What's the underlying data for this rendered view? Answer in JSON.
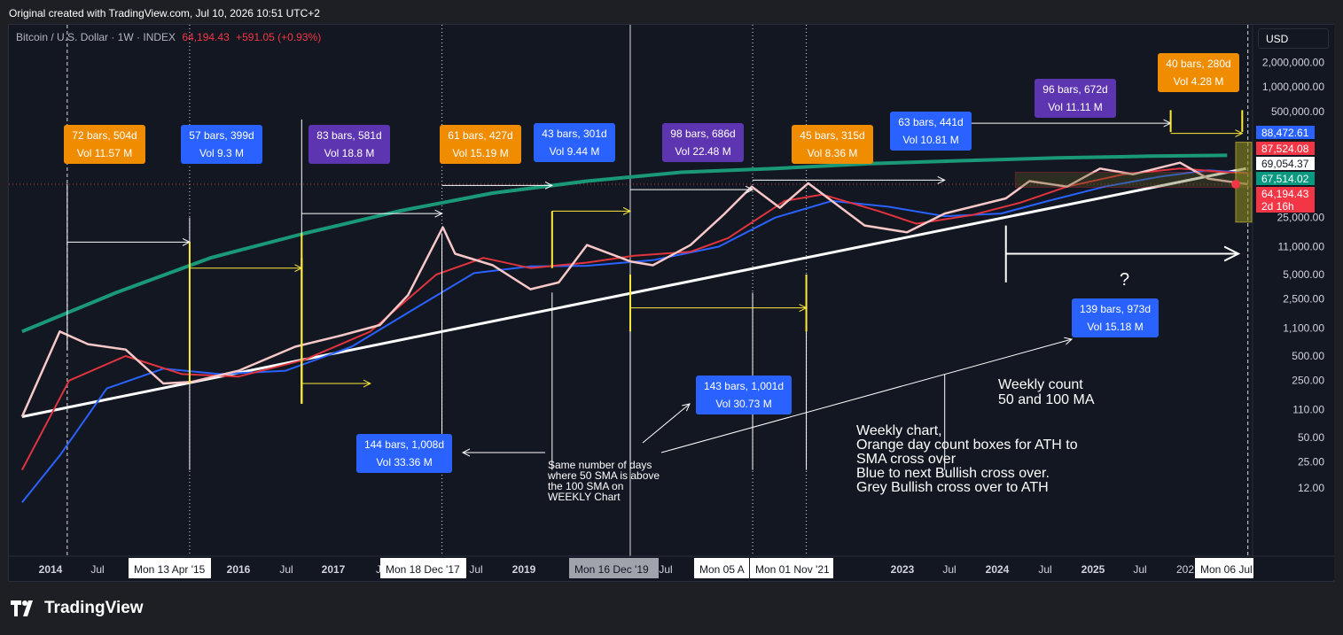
{
  "header": {
    "caption": "Original created with TradingView.com, Jul 10, 2026 10:51 UTC+2"
  },
  "legend": {
    "symbol": "Bitcoin / U.S. Dollar · 1W · INDEX",
    "price": "64,194.43",
    "change": "+591.05 (+0.93%)"
  },
  "currency_button": "USD",
  "brand": "TradingView",
  "colors": {
    "background": "#131722",
    "price": "#f8c8c8",
    "sma50": "#e0343e",
    "sma100": "#2962ff",
    "arc": "#1a9978",
    "support": "#ffffff",
    "orange": "#f08c00",
    "blue": "#2962ff",
    "purple": "#5e35b1",
    "yellow": "#ffeb3b"
  },
  "chart_data": {
    "type": "line",
    "title": "Bitcoin / U.S. Dollar · 1W · INDEX",
    "scale": "log",
    "timeframe": "1W",
    "ylim": [
      8,
      3000000
    ],
    "y_ticks": [
      "2,000,000.00",
      "1,000,000.00",
      "500,000.00",
      "25,000.00",
      "11,000.00",
      "5,000.00",
      "2,500.00",
      "1,100.00",
      "500.00",
      "250.00",
      "110.00",
      "50.00",
      "25.00",
      "12.00"
    ],
    "x_ticks": [
      "2014",
      "Jul",
      "2016",
      "Jul",
      "2017",
      "J",
      "Jul",
      "2019",
      "Jul",
      "2023",
      "Jul",
      "2024",
      "Jul",
      "2025",
      "Jul",
      "202"
    ],
    "x_highlight_labels": [
      "Mon 13 Apr '15",
      "Mon 18 Dec '17",
      "Mon 16 Dec '19",
      "Mon 05 A",
      "Mon 01 Nov '21",
      "Mon 06 Jul"
    ],
    "price_labels": [
      {
        "text": "88,472.61",
        "color": "#2962ff"
      },
      {
        "text": "87,524.08",
        "color": "#f23645"
      },
      {
        "text": "69,054.37",
        "color": "#ffffff"
      },
      {
        "text": "67,514.02",
        "color": "#089981"
      },
      {
        "text": "64,194.43",
        "color": "#f23645"
      },
      {
        "text": "2d 16h",
        "color": "#f23645"
      }
    ],
    "series": [
      {
        "name": "Bitcoin / U.S. Dollar",
        "points": [
          [
            2013.5,
            90
          ],
          [
            2013.9,
            1000
          ],
          [
            2014.2,
            700
          ],
          [
            2014.6,
            600
          ],
          [
            2015.0,
            230
          ],
          [
            2015.3,
            240
          ],
          [
            2015.8,
            330
          ],
          [
            2016.4,
            650
          ],
          [
            2016.9,
            900
          ],
          [
            2017.3,
            1200
          ],
          [
            2017.6,
            2800
          ],
          [
            2017.97,
            19000
          ],
          [
            2018.1,
            9000
          ],
          [
            2018.5,
            6500
          ],
          [
            2018.9,
            3300
          ],
          [
            2019.2,
            4000
          ],
          [
            2019.5,
            11500
          ],
          [
            2019.97,
            7200
          ],
          [
            2020.2,
            6500
          ],
          [
            2020.6,
            11500
          ],
          [
            2020.95,
            27000
          ],
          [
            2021.25,
            60000
          ],
          [
            2021.55,
            33000
          ],
          [
            2021.85,
            66000
          ],
          [
            2022.45,
            20000
          ],
          [
            2022.9,
            16500
          ],
          [
            2023.3,
            28000
          ],
          [
            2023.95,
            43000
          ],
          [
            2024.2,
            70000
          ],
          [
            2024.6,
            60000
          ],
          [
            2024.95,
            100000
          ],
          [
            2025.3,
            85000
          ],
          [
            2025.8,
            118000
          ],
          [
            2026.1,
            75000
          ],
          [
            2026.52,
            64194
          ]
        ]
      },
      {
        "name": "SMA 50",
        "points": [
          [
            2013.5,
            20
          ],
          [
            2014.0,
            250
          ],
          [
            2014.6,
            500
          ],
          [
            2015.2,
            300
          ],
          [
            2015.8,
            280
          ],
          [
            2016.5,
            450
          ],
          [
            2017.2,
            1000
          ],
          [
            2017.9,
            5000
          ],
          [
            2018.4,
            8000
          ],
          [
            2018.9,
            6000
          ],
          [
            2019.5,
            7000
          ],
          [
            2020.0,
            8500
          ],
          [
            2020.6,
            9500
          ],
          [
            2021.0,
            14000
          ],
          [
            2021.6,
            40000
          ],
          [
            2022.0,
            48000
          ],
          [
            2022.6,
            30000
          ],
          [
            2023.0,
            21000
          ],
          [
            2023.6,
            27000
          ],
          [
            2024.1,
            38000
          ],
          [
            2024.6,
            60000
          ],
          [
            2025.2,
            85000
          ],
          [
            2025.8,
            100000
          ],
          [
            2026.3,
            90000
          ],
          [
            2026.52,
            87524
          ]
        ]
      },
      {
        "name": "SMA 100",
        "points": [
          [
            2013.5,
            8
          ],
          [
            2013.9,
            30
          ],
          [
            2014.4,
            200
          ],
          [
            2015.0,
            350
          ],
          [
            2015.6,
            300
          ],
          [
            2016.3,
            330
          ],
          [
            2017.0,
            650
          ],
          [
            2017.7,
            2000
          ],
          [
            2018.3,
            5200
          ],
          [
            2018.9,
            6300
          ],
          [
            2019.5,
            6400
          ],
          [
            2020.2,
            7500
          ],
          [
            2020.9,
            11000
          ],
          [
            2021.5,
            25000
          ],
          [
            2022.1,
            40000
          ],
          [
            2022.7,
            34000
          ],
          [
            2023.3,
            26000
          ],
          [
            2023.9,
            28000
          ],
          [
            2024.4,
            40000
          ],
          [
            2025.0,
            60000
          ],
          [
            2025.6,
            80000
          ],
          [
            2026.1,
            95000
          ],
          [
            2026.52,
            88472
          ]
        ]
      }
    ],
    "arc_line": [
      [
        2013.5,
        1000
      ],
      [
        2014.5,
        3000
      ],
      [
        2015.5,
        8000
      ],
      [
        2016.5,
        16000
      ],
      [
        2017.5,
        30000
      ],
      [
        2018.5,
        50000
      ],
      [
        2019.5,
        70000
      ],
      [
        2020.5,
        90000
      ],
      [
        2021.5,
        100000
      ],
      [
        2022.5,
        115000
      ],
      [
        2023.5,
        125000
      ],
      [
        2024.5,
        135000
      ],
      [
        2025.5,
        142000
      ],
      [
        2026.3,
        145000
      ]
    ],
    "support_line": [
      [
        2013.5,
        90
      ],
      [
        2026.5,
        100000
      ]
    ],
    "cycle_boxes": [
      {
        "label": "72 bars, 504d",
        "vol": "Vol 11.57 M",
        "color": "orange"
      },
      {
        "label": "57 bars, 399d",
        "vol": "Vol 9.3 M",
        "color": "blue"
      },
      {
        "label": "83 bars, 581d",
        "vol": "Vol 18.8 M",
        "color": "purple"
      },
      {
        "label": "61 bars, 427d",
        "vol": "Vol 15.19 M",
        "color": "orange"
      },
      {
        "label": "43 bars, 301d",
        "vol": "Vol 9.44 M",
        "color": "blue"
      },
      {
        "label": "98 bars, 686d",
        "vol": "Vol 22.48 M",
        "color": "purple"
      },
      {
        "label": "45 bars, 315d",
        "vol": "Vol 8.36 M",
        "color": "orange"
      },
      {
        "label": "63 bars, 441d",
        "vol": "Vol 10.81 M",
        "color": "blue"
      },
      {
        "label": "96 bars, 672d",
        "vol": "Vol 11.11 M",
        "color": "purple"
      },
      {
        "label": "40 bars, 280d",
        "vol": "Vol 4.28 M",
        "color": "orange"
      }
    ],
    "long_boxes": [
      {
        "label": "144 bars, 1,008d",
        "vol": "Vol 33.36 M"
      },
      {
        "label": "143 bars, 1,001d",
        "vol": "Vol 30.73 M"
      },
      {
        "label": "139 bars, 973d",
        "vol": "Vol 15.18 M"
      }
    ],
    "annotations": {
      "question": "?",
      "same_days": [
        "Same number of days",
        "where 50 SMA is above",
        "the 100 SMA on",
        "WEEKLY Chart"
      ],
      "weekly_count": [
        "Weekly count",
        "50 and 100 MA"
      ],
      "description": [
        "Weekly chart,",
        "Orange day count boxes for ATH to",
        "SMA cross over",
        "Blue to next Bullish cross over.",
        "Grey Bullish cross over to ATH"
      ]
    }
  }
}
